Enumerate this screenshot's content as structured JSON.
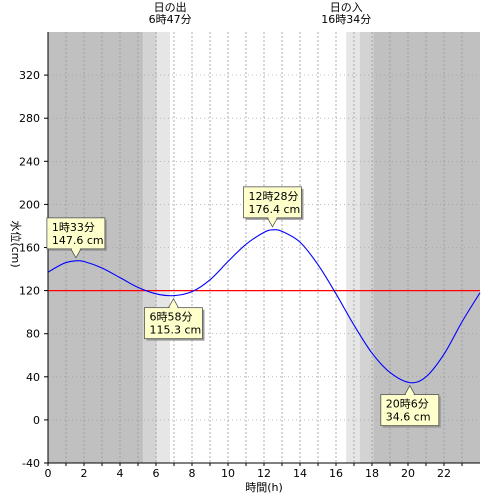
{
  "chart_data": {
    "type": "line",
    "xlabel": "時間(h)",
    "ylabel": "水位(cm)",
    "xlim": [
      0,
      24
    ],
    "ylim": [
      -40,
      360
    ],
    "x_ticks": [
      0,
      2,
      4,
      6,
      8,
      10,
      12,
      14,
      16,
      18,
      20,
      22
    ],
    "y_ticks": [
      -40,
      0,
      40,
      80,
      120,
      160,
      200,
      240,
      280,
      320
    ],
    "reference_line": {
      "value": 120,
      "color": "#ff0000"
    },
    "series": [
      {
        "color": "#0000ff",
        "points": [
          [
            0,
            137
          ],
          [
            0.5,
            142
          ],
          [
            1.0,
            146
          ],
          [
            1.55,
            147.6
          ],
          [
            2.0,
            147
          ],
          [
            3.0,
            141
          ],
          [
            4.0,
            132
          ],
          [
            5.0,
            123
          ],
          [
            6.0,
            117
          ],
          [
            6.97,
            115.3
          ],
          [
            8.0,
            119
          ],
          [
            9.0,
            130
          ],
          [
            10.0,
            147
          ],
          [
            11.0,
            163
          ],
          [
            12.0,
            174
          ],
          [
            12.47,
            176.4
          ],
          [
            13.0,
            175
          ],
          [
            14.0,
            165
          ],
          [
            15.0,
            144
          ],
          [
            16.0,
            117
          ],
          [
            17.0,
            88
          ],
          [
            18.0,
            62
          ],
          [
            19.0,
            44
          ],
          [
            20.1,
            34.6
          ],
          [
            21.0,
            40
          ],
          [
            22.0,
            61
          ],
          [
            23.0,
            91
          ],
          [
            24.0,
            118
          ]
        ]
      }
    ],
    "annotations": [
      {
        "time": "1時33分",
        "level": "147.6 cm",
        "x": 1.55,
        "y": 147.6
      },
      {
        "time": "6時58分",
        "level": "115.3 cm",
        "x": 6.97,
        "y": 115.3
      },
      {
        "time": "12時28分",
        "level": "176.4 cm",
        "x": 12.47,
        "y": 176.4
      },
      {
        "time": "20時6分",
        "level": "34.6 cm",
        "x": 20.1,
        "y": 34.6
      }
    ],
    "sunrise": {
      "label": "日の出",
      "time": "6時47分",
      "hour": 6.783
    },
    "sunset": {
      "label": "日の入",
      "time": "16時34分",
      "hour": 16.567
    },
    "twilight_colors": {
      "night": "#c0c0c0",
      "twilight1": "#d3d3d3",
      "twilight2": "#e6e6e6",
      "day": "#ffffff"
    }
  }
}
